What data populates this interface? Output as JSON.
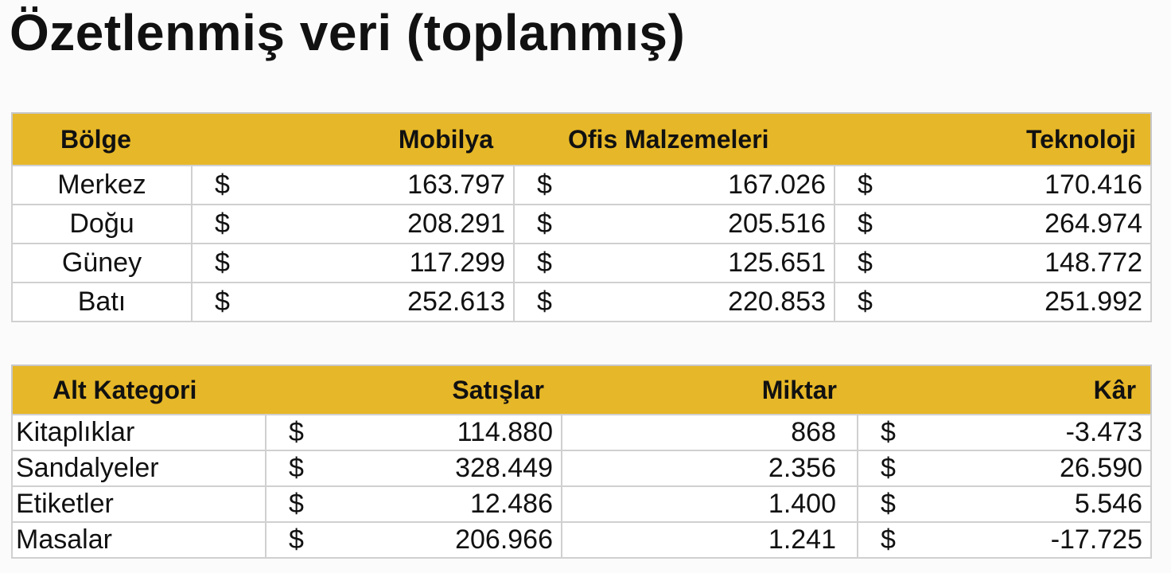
{
  "title": "Özetlenmiş veri (toplanmış)",
  "region_table": {
    "headers": [
      "Bölge",
      "Mobilya",
      "Ofis Malzemeleri",
      "Teknoloji"
    ],
    "currency": "$",
    "rows": [
      {
        "label": "Merkez",
        "values": [
          "163.797",
          "167.026",
          "170.416"
        ]
      },
      {
        "label": "Doğu",
        "values": [
          "208.291",
          "205.516",
          "264.974"
        ]
      },
      {
        "label": "Güney",
        "values": [
          "117.299",
          "125.651",
          "148.772"
        ]
      },
      {
        "label": "Batı",
        "values": [
          "252.613",
          "220.853",
          "251.992"
        ]
      }
    ]
  },
  "subcategory_table": {
    "headers": [
      "Alt Kategori",
      "Satışlar",
      "Miktar",
      "Kâr"
    ],
    "currency": "$",
    "rows": [
      {
        "label": "Kitaplıklar",
        "sales": "114.880",
        "quantity": "868",
        "profit": "-3.473"
      },
      {
        "label": "Sandalyeler",
        "sales": "328.449",
        "quantity": "2.356",
        "profit": "26.590"
      },
      {
        "label": "Etiketler",
        "sales": "12.486",
        "quantity": "1.400",
        "profit": "5.546"
      },
      {
        "label": "Masalar",
        "sales": "206.966",
        "quantity": "1.241",
        "profit": "-17.725"
      }
    ]
  },
  "colors": {
    "header_bg": "#e6b728"
  }
}
